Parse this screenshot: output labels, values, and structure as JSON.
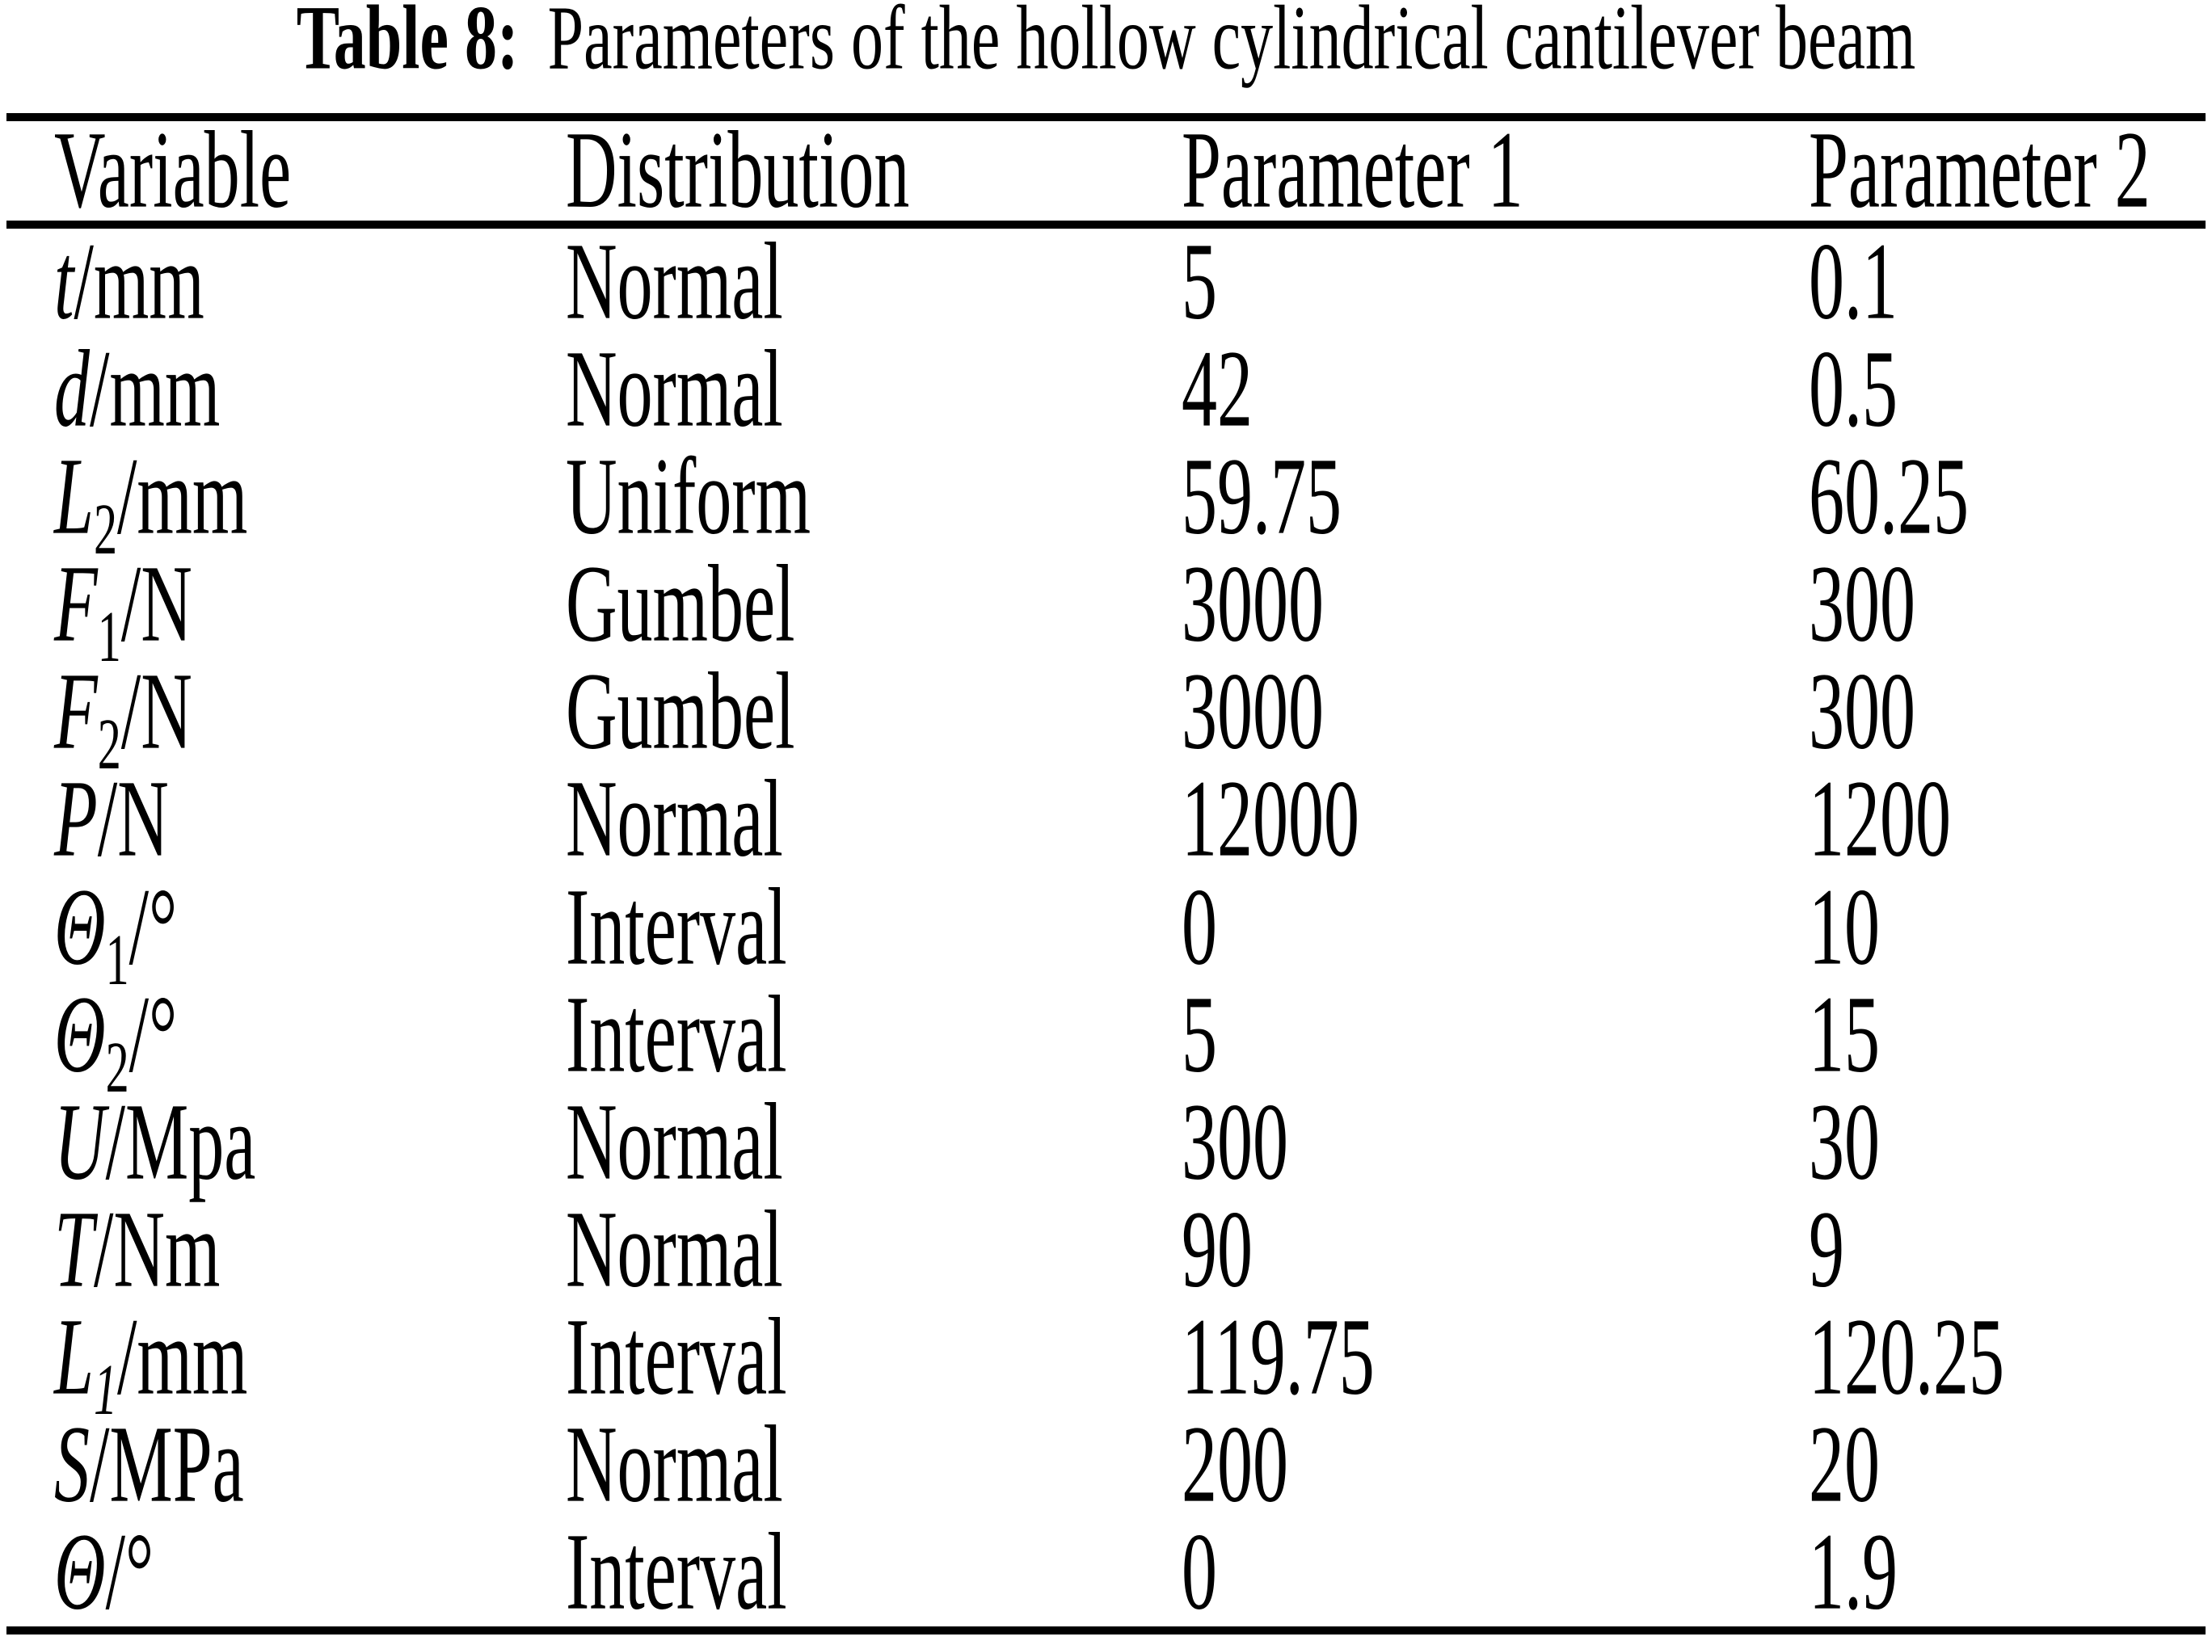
{
  "title": {
    "label_bold": "Table 8:",
    "caption": "Parameters of the hollow cylindrical cantilever beam"
  },
  "table": {
    "headers": [
      "Variable",
      "Distribution",
      "Parameter 1",
      "Parameter 2"
    ],
    "rows": [
      {
        "var_symbol": "t",
        "var_sub": "",
        "var_unit": "/mm",
        "distribution": "Normal",
        "param1": "5",
        "param2": "0.1"
      },
      {
        "var_symbol": "d",
        "var_sub": "",
        "var_unit": "/mm",
        "distribution": "Normal",
        "param1": "42",
        "param2": "0.5"
      },
      {
        "var_symbol": "L",
        "var_sub": "2",
        "var_unit": "/mm",
        "distribution": "Uniform",
        "param1": "59.75",
        "param2": "60.25"
      },
      {
        "var_symbol": "F",
        "var_sub": "1",
        "var_unit": "/N",
        "distribution": "Gumbel",
        "param1": "3000",
        "param2": "300"
      },
      {
        "var_symbol": "F",
        "var_sub": "2",
        "var_unit": "/N",
        "distribution": "Gumbel",
        "param1": "3000",
        "param2": "300"
      },
      {
        "var_symbol": "P",
        "var_sub": "",
        "var_unit": "/N",
        "distribution": "Normal",
        "param1": "12000",
        "param2": "1200"
      },
      {
        "var_symbol": "Θ",
        "var_sub": "1",
        "var_unit": "/°",
        "distribution": "Interval",
        "param1": "0",
        "param2": "10"
      },
      {
        "var_symbol": "Θ",
        "var_sub": "2",
        "var_unit": "/°",
        "distribution": "Interval",
        "param1": "5",
        "param2": "15"
      },
      {
        "var_symbol": "U",
        "var_sub": "",
        "var_unit": "/Mpa",
        "distribution": "Normal",
        "param1": "300",
        "param2": "30"
      },
      {
        "var_symbol": "T",
        "var_sub": "",
        "var_unit": "/Nm",
        "distribution": "Normal",
        "param1": "90",
        "param2": "9"
      },
      {
        "var_symbol": "L",
        "var_sub": "1",
        "var_unit": "/mm",
        "distribution": "Interval",
        "param1": "119.75",
        "param2": "120.25"
      },
      {
        "var_symbol": "S",
        "var_sub": "",
        "var_unit": "/MPa",
        "distribution": "Normal",
        "param1": "200",
        "param2": "20"
      },
      {
        "var_symbol": "Θ",
        "var_sub": "",
        "var_unit": "/°",
        "distribution": "Interval",
        "param1": "0",
        "param2": "1.9"
      }
    ]
  }
}
